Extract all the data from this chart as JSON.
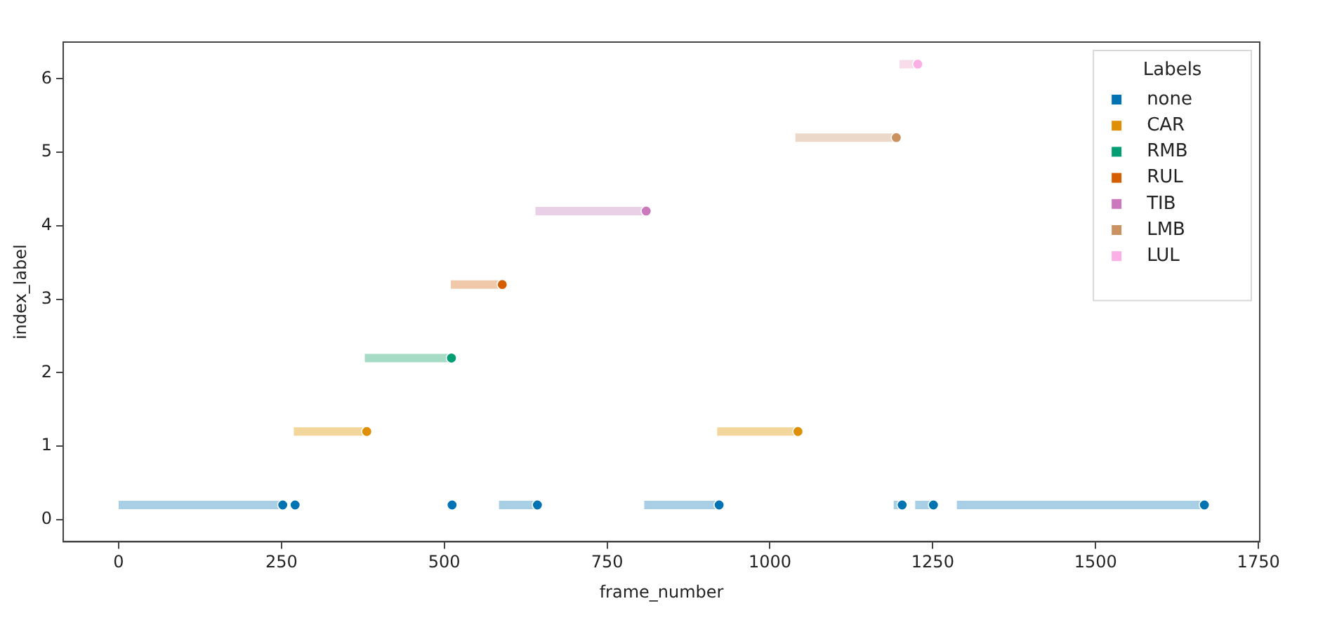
{
  "chart_data": {
    "type": "scatter",
    "xlabel": "frame_number",
    "ylabel": "index_label",
    "legend_title": "Labels",
    "legend": "top right",
    "grid": false,
    "marker": "circle",
    "xlim": [
      -85,
      1752
    ],
    "xticks": [
      0,
      250,
      500,
      750,
      1000,
      1250,
      1500,
      1750
    ],
    "ylim": [
      -0.3,
      6.5
    ],
    "yticks": [
      0,
      1,
      2,
      3,
      4,
      5,
      6
    ],
    "series": [
      {
        "type": "line",
        "marker": "none",
        "color": "#a9cfe6",
        "x": [
          0,
          252,
          418,
          584,
          643,
          725,
          807,
          922,
          1056,
          1190,
          1203,
          1213,
          1223,
          1251,
          1269,
          1287,
          1667
        ],
        "values": [
          0.2,
          0.2,
          null,
          0.2,
          0.2,
          null,
          0.2,
          0.2,
          null,
          0.2,
          0.2,
          null,
          0.2,
          0.2,
          null,
          0.2,
          0.2
        ]
      },
      {
        "type": "line",
        "marker": "none",
        "color": "#f2d69c",
        "x": [
          269,
          381,
          650,
          919,
          1043
        ],
        "values": [
          1.2,
          1.2,
          null,
          1.2,
          1.2
        ]
      },
      {
        "type": "line",
        "marker": "none",
        "color": "#a6dcc6",
        "x": [
          378,
          511
        ],
        "values": [
          2.2,
          2.2
        ]
      },
      {
        "type": "line",
        "marker": "none",
        "color": "#f0c8aa",
        "x": [
          510,
          589
        ],
        "values": [
          3.2,
          3.2
        ]
      },
      {
        "type": "line",
        "marker": "none",
        "color": "#ead0e6",
        "x": [
          640,
          810
        ],
        "values": [
          4.2,
          4.2
        ]
      },
      {
        "type": "line",
        "marker": "none",
        "color": "#ecd8c8",
        "x": [
          1039,
          1194
        ],
        "values": [
          5.2,
          5.2
        ]
      },
      {
        "type": "line",
        "marker": "none",
        "color": "#f8dcea",
        "x": [
          1199,
          1227
        ],
        "values": [
          6.2,
          6.2
        ]
      },
      {
        "name": "none",
        "color": "#0173b2",
        "x": [
          252,
          271,
          512,
          643,
          922,
          1203,
          1251,
          1667
        ],
        "values": [
          0.2,
          0.2,
          0.2,
          0.2,
          0.2,
          0.2,
          0.2,
          0.2
        ]
      },
      {
        "name": "CAR",
        "color": "#de8f05",
        "x": [
          381,
          1043
        ],
        "values": [
          1.2,
          1.2
        ]
      },
      {
        "name": "RMB",
        "color": "#029e73",
        "x": [
          511
        ],
        "values": [
          2.2
        ]
      },
      {
        "name": "RUL",
        "color": "#d55e00",
        "x": [
          589
        ],
        "values": [
          3.2
        ]
      },
      {
        "name": "TIB",
        "color": "#cc78bc",
        "x": [
          810
        ],
        "values": [
          4.2
        ]
      },
      {
        "name": "LMB",
        "color": "#ca9161",
        "x": [
          1194
        ],
        "values": [
          5.2
        ]
      },
      {
        "name": "LUL",
        "color": "#fbafe4",
        "x": [
          1227
        ],
        "values": [
          6.2
        ]
      }
    ]
  }
}
